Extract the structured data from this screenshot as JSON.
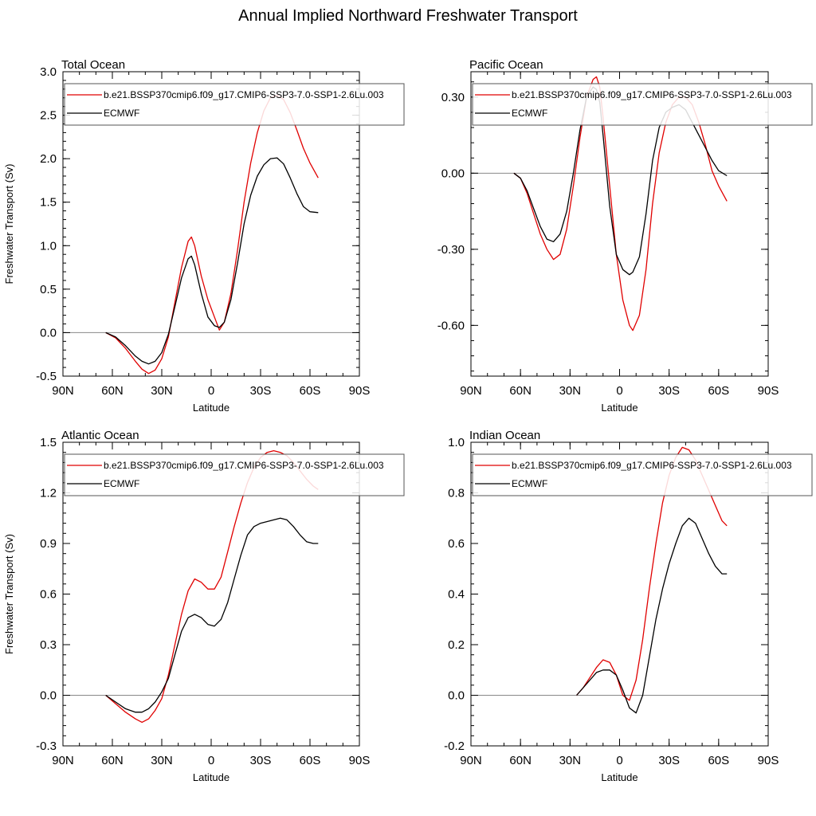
{
  "figure": {
    "title": "Annual Implied Northward Freshwater Transport"
  },
  "colors": {
    "model": "#e00000",
    "obs": "#000000",
    "zero": "#888888"
  },
  "legend_labels": [
    "b.e21.BSSP370cmip6.f09_g17.CMIP6-SSP3-7.0-SSP1-2.6Lu.003",
    "ECMWF"
  ],
  "chart_data": [
    {
      "type": "line",
      "title": "Total Ocean",
      "xlabel": "Latitude",
      "ylabel": "Freshwater Transport (Sv)",
      "xlim": [
        -90,
        90
      ],
      "xticks": [
        -90,
        -60,
        -30,
        0,
        30,
        60,
        90
      ],
      "xticklabels": [
        "90N",
        "60N",
        "30N",
        "0",
        "30S",
        "60S",
        "90S"
      ],
      "ylim": [
        -0.5,
        3.0
      ],
      "yticks": [
        -0.5,
        0,
        0.5,
        1.0,
        1.5,
        2.0,
        2.5,
        3.0
      ],
      "yticklabels": [
        "-0.5",
        "0.0",
        "0.5",
        "1.0",
        "1.5",
        "2.0",
        "2.5",
        "3.0"
      ],
      "legend_placement": "top",
      "series": [
        {
          "name": "b.e21.BSSP370cmip6.f09_g17.CMIP6-SSP3-7.0-SSP1-2.6Lu.003",
          "color": "#e00000",
          "x": [
            -64,
            -58,
            -52,
            -46,
            -42,
            -38,
            -34,
            -30,
            -26,
            -22,
            -18,
            -14,
            -12,
            -10,
            -6,
            -2,
            2,
            5,
            8,
            12,
            16,
            20,
            24,
            28,
            32,
            36,
            40,
            44,
            48,
            52,
            56,
            60,
            65
          ],
          "y": [
            0.0,
            -0.06,
            -0.18,
            -0.33,
            -0.42,
            -0.47,
            -0.43,
            -0.3,
            -0.05,
            0.35,
            0.75,
            1.05,
            1.1,
            1.0,
            0.65,
            0.38,
            0.18,
            0.03,
            0.12,
            0.45,
            0.95,
            1.5,
            1.95,
            2.3,
            2.55,
            2.7,
            2.73,
            2.68,
            2.53,
            2.33,
            2.12,
            1.95,
            1.78
          ]
        },
        {
          "name": "ECMWF",
          "color": "#000000",
          "x": [
            -64,
            -58,
            -52,
            -46,
            -42,
            -38,
            -34,
            -30,
            -26,
            -22,
            -18,
            -14,
            -12,
            -10,
            -6,
            -2,
            2,
            5,
            8,
            12,
            16,
            20,
            24,
            28,
            32,
            36,
            40,
            44,
            48,
            52,
            56,
            60,
            65
          ],
          "y": [
            0.0,
            -0.05,
            -0.15,
            -0.27,
            -0.33,
            -0.36,
            -0.33,
            -0.23,
            -0.02,
            0.3,
            0.63,
            0.85,
            0.88,
            0.78,
            0.45,
            0.18,
            0.08,
            0.06,
            0.12,
            0.38,
            0.8,
            1.25,
            1.58,
            1.8,
            1.93,
            2.0,
            2.01,
            1.94,
            1.78,
            1.6,
            1.45,
            1.39,
            1.38
          ]
        }
      ]
    },
    {
      "type": "line",
      "title": "Pacific Ocean",
      "xlabel": "Latitude",
      "ylabel": "",
      "xlim": [
        -90,
        90
      ],
      "xticks": [
        -90,
        -60,
        -30,
        0,
        30,
        60,
        90
      ],
      "xticklabels": [
        "90N",
        "60N",
        "30N",
        "0",
        "30S",
        "60S",
        "90S"
      ],
      "ylim": [
        -0.8,
        0.4
      ],
      "yticks": [
        -0.6,
        -0.3,
        0.0,
        0.3
      ],
      "yticklabels": [
        "-0.60",
        "-0.30",
        "0.00",
        "0.30"
      ],
      "legend_placement": "top",
      "series": [
        {
          "name": "b.e21.BSSP370cmip6.f09_g17.CMIP6-SSP3-7.0-SSP1-2.6Lu.003",
          "color": "#e00000",
          "x": [
            -64,
            -60,
            -56,
            -52,
            -48,
            -44,
            -40,
            -36,
            -32,
            -28,
            -24,
            -20,
            -16,
            -14,
            -12,
            -10,
            -6,
            -2,
            2,
            6,
            8,
            12,
            16,
            20,
            24,
            28,
            32,
            36,
            40,
            44,
            48,
            52,
            56,
            60,
            65
          ],
          "y": [
            0.0,
            -0.02,
            -0.08,
            -0.16,
            -0.24,
            -0.3,
            -0.34,
            -0.32,
            -0.22,
            -0.05,
            0.14,
            0.3,
            0.37,
            0.38,
            0.34,
            0.22,
            -0.05,
            -0.32,
            -0.5,
            -0.6,
            -0.62,
            -0.56,
            -0.38,
            -0.12,
            0.08,
            0.2,
            0.27,
            0.3,
            0.3,
            0.27,
            0.2,
            0.11,
            0.01,
            -0.05,
            -0.11
          ]
        },
        {
          "name": "ECMWF",
          "color": "#000000",
          "x": [
            -64,
            -60,
            -56,
            -52,
            -48,
            -44,
            -40,
            -36,
            -32,
            -28,
            -24,
            -20,
            -16,
            -14,
            -12,
            -10,
            -6,
            -2,
            2,
            6,
            8,
            12,
            16,
            20,
            24,
            28,
            32,
            36,
            40,
            44,
            48,
            52,
            56,
            60,
            65
          ],
          "y": [
            0.0,
            -0.02,
            -0.07,
            -0.14,
            -0.21,
            -0.26,
            -0.27,
            -0.24,
            -0.15,
            0.0,
            0.17,
            0.3,
            0.34,
            0.33,
            0.28,
            0.15,
            -0.13,
            -0.32,
            -0.38,
            -0.4,
            -0.39,
            -0.33,
            -0.16,
            0.05,
            0.18,
            0.24,
            0.26,
            0.27,
            0.25,
            0.2,
            0.15,
            0.1,
            0.05,
            0.01,
            -0.01
          ]
        }
      ]
    },
    {
      "type": "line",
      "title": "Atlantic Ocean",
      "xlabel": "Latitude",
      "ylabel": "Freshwater Transport (Sv)",
      "xlim": [
        -90,
        90
      ],
      "xticks": [
        -90,
        -60,
        -30,
        0,
        30,
        60,
        90
      ],
      "xticklabels": [
        "90N",
        "60N",
        "30N",
        "0",
        "30S",
        "60S",
        "90S"
      ],
      "ylim": [
        -0.3,
        1.5
      ],
      "yticks": [
        -0.3,
        0.0,
        0.3,
        0.6,
        0.9,
        1.2,
        1.5
      ],
      "yticklabels": [
        "-0.3",
        "0.0",
        "0.3",
        "0.6",
        "0.9",
        "1.2",
        "1.5"
      ],
      "legend_placement": "top",
      "series": [
        {
          "name": "b.e21.BSSP370cmip6.f09_g17.CMIP6-SSP3-7.0-SSP1-2.6Lu.003",
          "color": "#e00000",
          "x": [
            -64,
            -58,
            -52,
            -46,
            -42,
            -38,
            -34,
            -30,
            -26,
            -22,
            -18,
            -14,
            -10,
            -6,
            -2,
            2,
            6,
            10,
            14,
            18,
            22,
            26,
            30,
            34,
            38,
            42,
            46,
            50,
            54,
            58,
            62,
            65
          ],
          "y": [
            0.0,
            -0.05,
            -0.1,
            -0.14,
            -0.16,
            -0.14,
            -0.09,
            -0.02,
            0.12,
            0.3,
            0.48,
            0.62,
            0.69,
            0.67,
            0.63,
            0.63,
            0.7,
            0.85,
            1.0,
            1.14,
            1.26,
            1.35,
            1.41,
            1.44,
            1.45,
            1.44,
            1.42,
            1.38,
            1.33,
            1.28,
            1.24,
            1.22
          ]
        },
        {
          "name": "ECMWF",
          "color": "#000000",
          "x": [
            -64,
            -58,
            -52,
            -46,
            -42,
            -38,
            -34,
            -30,
            -26,
            -22,
            -18,
            -14,
            -10,
            -6,
            -2,
            2,
            6,
            10,
            14,
            18,
            22,
            26,
            30,
            34,
            38,
            42,
            46,
            50,
            54,
            58,
            62,
            65
          ],
          "y": [
            0.0,
            -0.04,
            -0.08,
            -0.1,
            -0.1,
            -0.08,
            -0.04,
            0.02,
            0.1,
            0.24,
            0.38,
            0.46,
            0.48,
            0.46,
            0.42,
            0.41,
            0.45,
            0.55,
            0.69,
            0.83,
            0.95,
            1.0,
            1.02,
            1.03,
            1.04,
            1.05,
            1.04,
            1.0,
            0.95,
            0.91,
            0.9,
            0.9
          ]
        }
      ]
    },
    {
      "type": "line",
      "title": "Indian Ocean",
      "xlabel": "Latitude",
      "ylabel": "",
      "xlim": [
        -90,
        90
      ],
      "xticks": [
        -90,
        -60,
        -30,
        0,
        30,
        60,
        90
      ],
      "xticklabels": [
        "90N",
        "60N",
        "30N",
        "0",
        "30S",
        "60S",
        "90S"
      ],
      "ylim": [
        -0.2,
        1.0
      ],
      "yticks": [
        -0.2,
        0.0,
        0.2,
        0.4,
        0.6,
        0.8,
        1.0
      ],
      "yticklabels": [
        "-0.2",
        "0.0",
        "0.2",
        "0.4",
        "0.6",
        "0.8",
        "1.0"
      ],
      "legend_placement": "top",
      "series": [
        {
          "name": "b.e21.BSSP370cmip6.f09_g17.CMIP6-SSP3-7.0-SSP1-2.6Lu.003",
          "color": "#e00000",
          "x": [
            -26,
            -22,
            -18,
            -14,
            -10,
            -6,
            -2,
            2,
            6,
            10,
            14,
            18,
            22,
            26,
            30,
            34,
            38,
            42,
            46,
            50,
            54,
            58,
            62,
            65
          ],
          "y": [
            0.0,
            0.03,
            0.07,
            0.11,
            0.14,
            0.13,
            0.08,
            0.0,
            -0.02,
            0.06,
            0.22,
            0.42,
            0.6,
            0.76,
            0.87,
            0.94,
            0.98,
            0.97,
            0.93,
            0.87,
            0.81,
            0.75,
            0.69,
            0.67
          ]
        },
        {
          "name": "ECMWF",
          "color": "#000000",
          "x": [
            -26,
            -22,
            -18,
            -14,
            -10,
            -6,
            -2,
            2,
            6,
            10,
            14,
            18,
            22,
            26,
            30,
            34,
            38,
            42,
            46,
            50,
            54,
            58,
            62,
            65
          ],
          "y": [
            0.0,
            0.03,
            0.06,
            0.09,
            0.1,
            0.1,
            0.08,
            0.02,
            -0.05,
            -0.07,
            0.0,
            0.15,
            0.3,
            0.42,
            0.52,
            0.6,
            0.67,
            0.7,
            0.68,
            0.62,
            0.56,
            0.51,
            0.48,
            0.48
          ]
        }
      ]
    }
  ]
}
